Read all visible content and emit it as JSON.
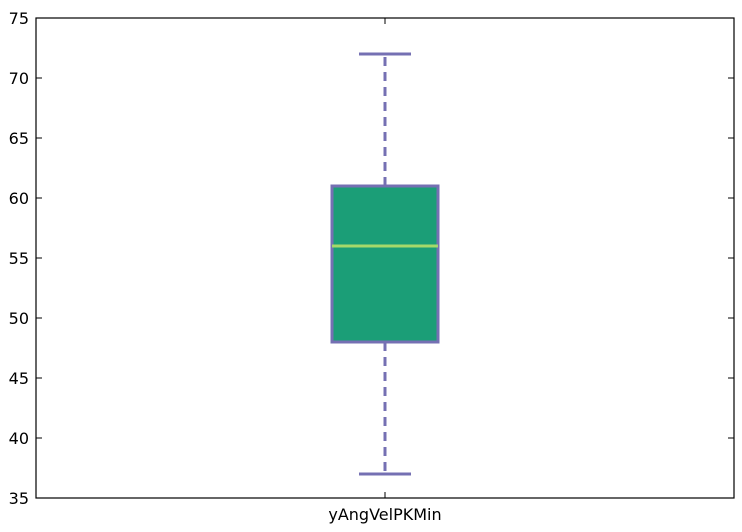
{
  "chart_data": {
    "type": "box",
    "categories": [
      "yAngVelPKMin"
    ],
    "series": [
      {
        "whisker_low": 37,
        "q1": 48,
        "median": 56,
        "q3": 61,
        "whisker_high": 72
      }
    ],
    "ylim": [
      35,
      75
    ],
    "yticks": [
      "35",
      "40",
      "45",
      "50",
      "55",
      "60",
      "65",
      "70",
      "75"
    ],
    "grid": false,
    "colors": {
      "box_fill": "#1b9e77",
      "box_edge": "#7570b3",
      "median": "#a6d96a",
      "whisker": "#7570b3",
      "axes": "#000000"
    }
  }
}
